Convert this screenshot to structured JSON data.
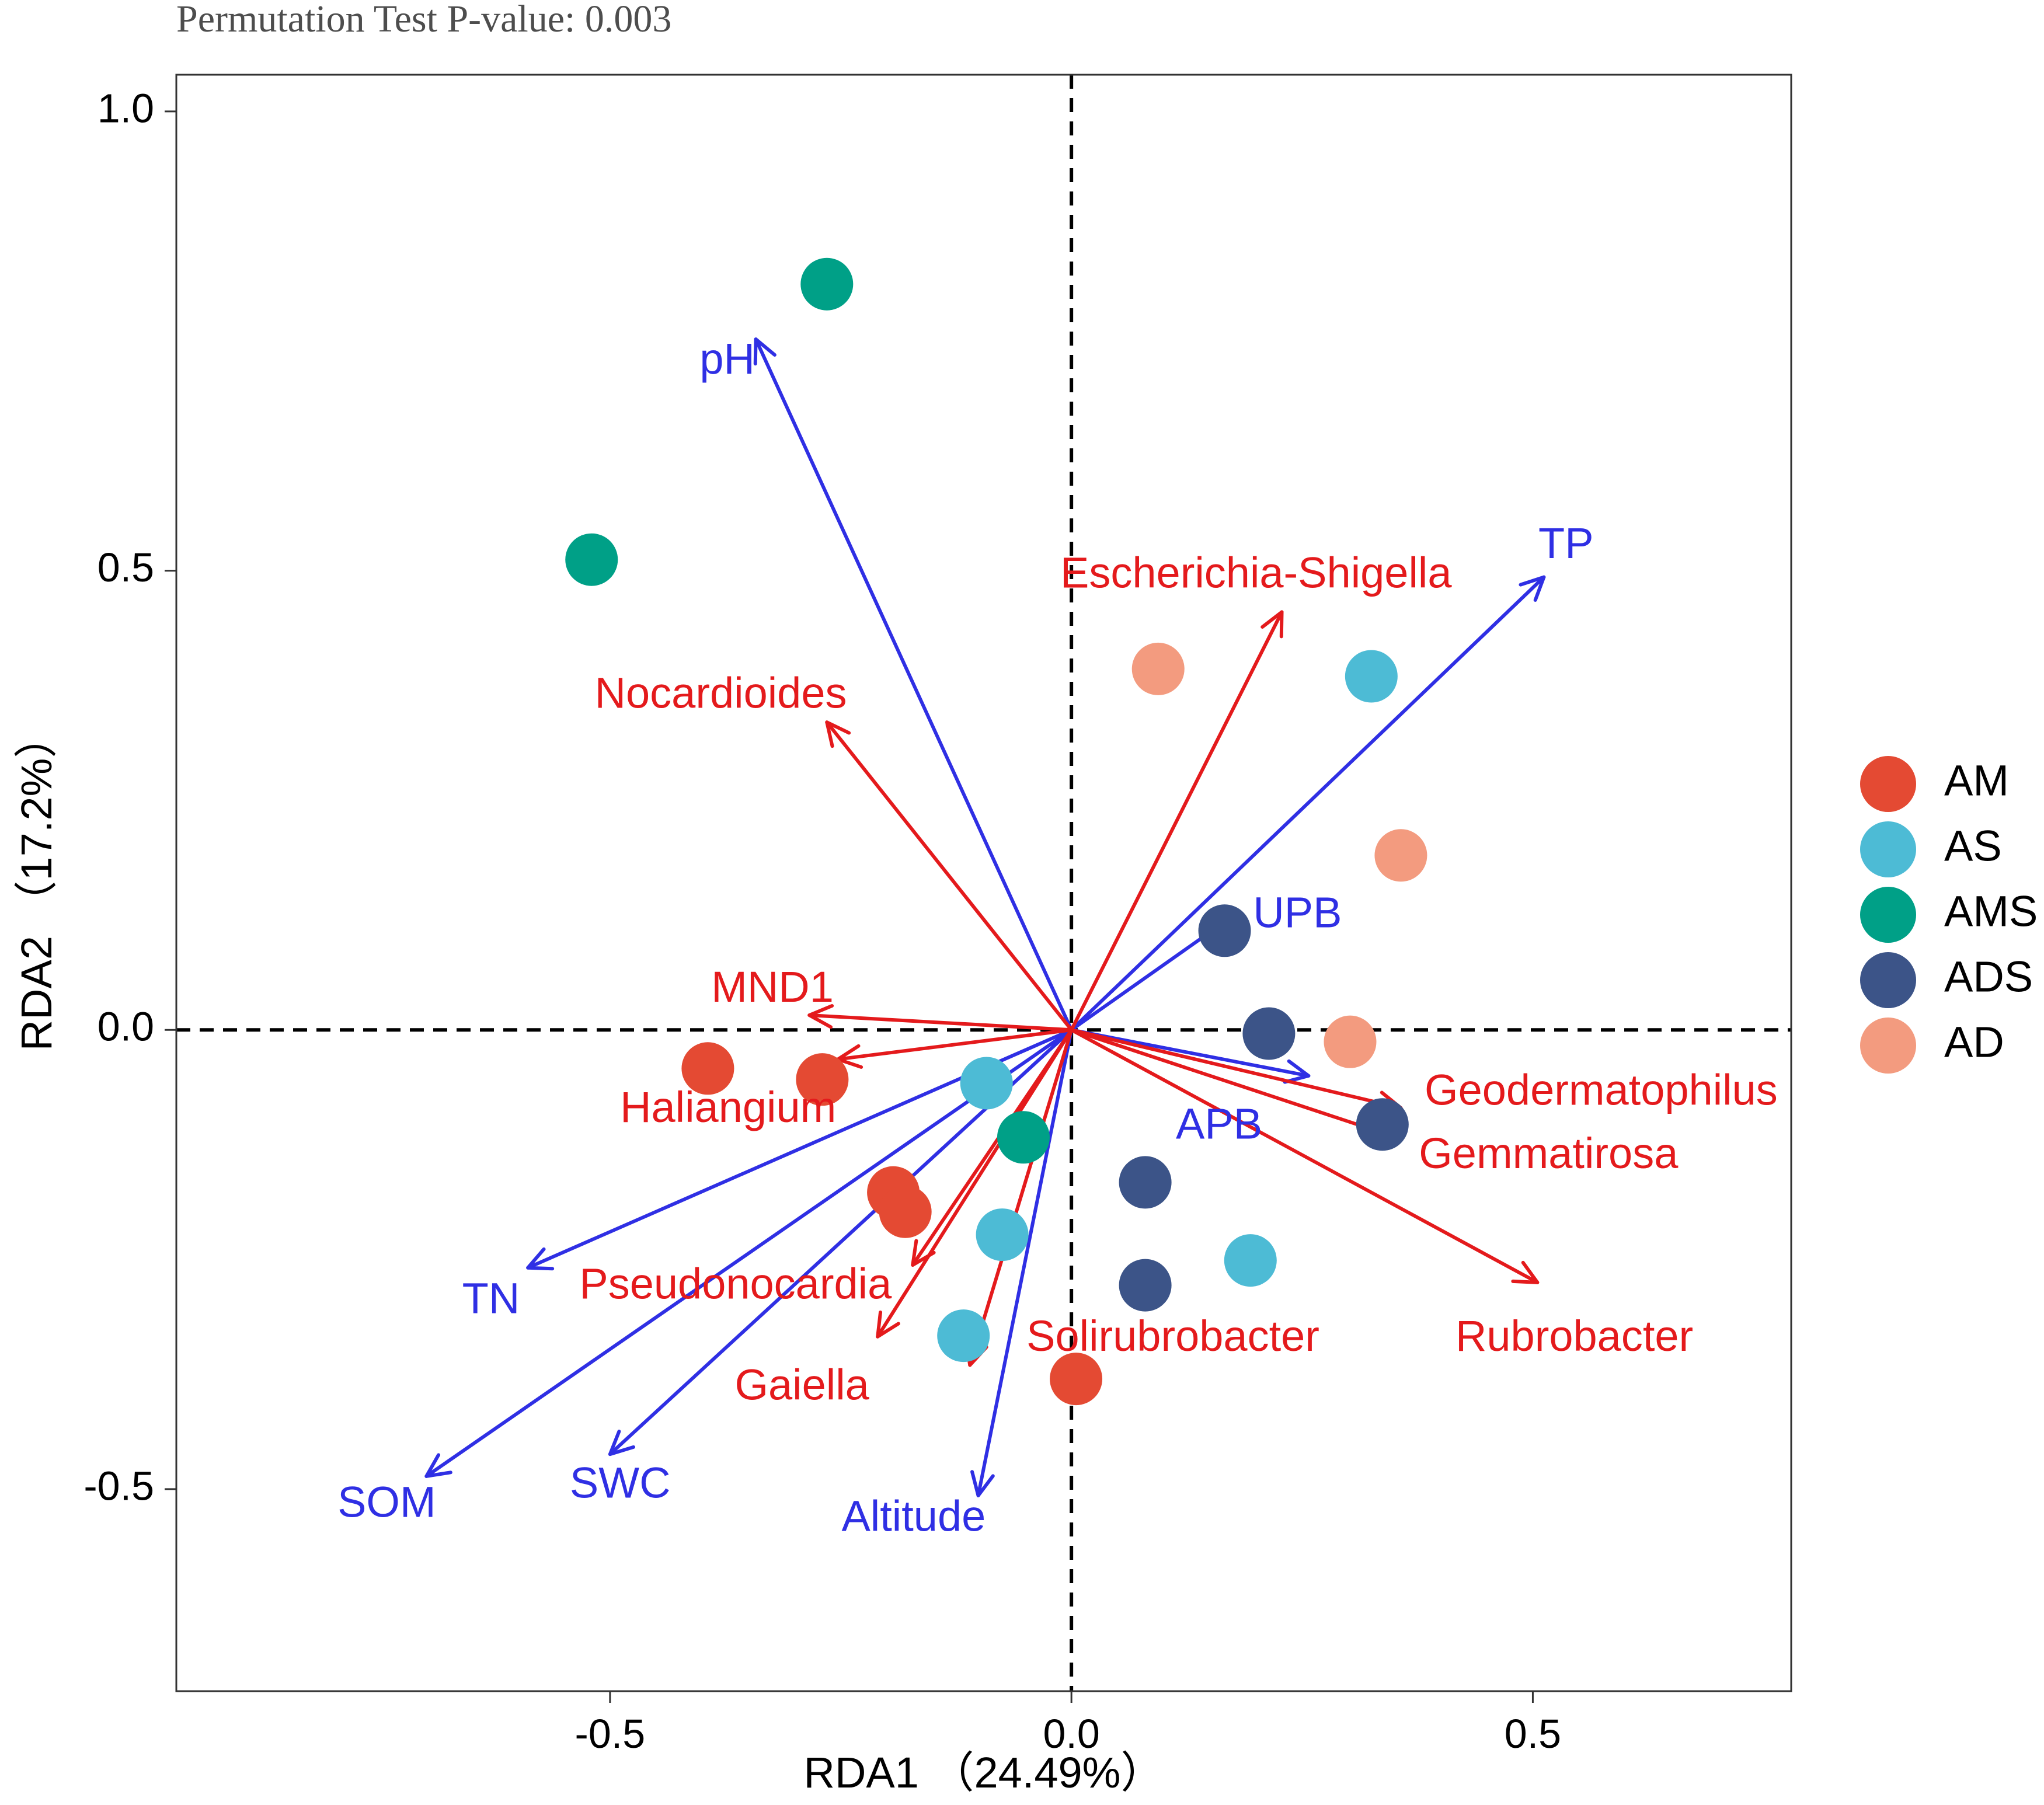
{
  "chart_data": {
    "type": "scatter",
    "subtitle": "Permutation Test P-value: 0.003",
    "xlabel": "RDA1 （24.49%）",
    "ylabel": "RDA2 （17.2%）",
    "xlim": [
      -0.97,
      0.78
    ],
    "ylim": [
      -0.72,
      1.04
    ],
    "xticks": [
      -0.5,
      0.0,
      0.5
    ],
    "xtick_labels": [
      "-0.5",
      "0.0",
      "0.5"
    ],
    "yticks": [
      -0.5,
      0.0,
      0.5,
      1.0
    ],
    "ytick_labels": [
      "-0.5",
      "0.0",
      "0.5",
      "1.0"
    ],
    "grid": false,
    "reference_lines": {
      "x": 0,
      "y": 0,
      "style": "dashed"
    },
    "legend": {
      "position": "right",
      "entries": [
        {
          "label": "AM",
          "color": "#E44A33"
        },
        {
          "label": "AS",
          "color": "#4DBBD5"
        },
        {
          "label": "AMS",
          "color": "#00A087"
        },
        {
          "label": "ADS",
          "color": "#3C5488"
        },
        {
          "label": "AD",
          "color": "#F39B7F"
        }
      ]
    },
    "points": [
      {
        "group": "AMS",
        "x": -0.265,
        "y": 0.812
      },
      {
        "group": "AMS",
        "x": -0.52,
        "y": 0.512
      },
      {
        "group": "AMS",
        "x": -0.052,
        "y": -0.117
      },
      {
        "group": "AD",
        "x": 0.094,
        "y": 0.393
      },
      {
        "group": "AD",
        "x": 0.357,
        "y": 0.19
      },
      {
        "group": "AD",
        "x": 0.302,
        "y": -0.013
      },
      {
        "group": "AS",
        "x": 0.325,
        "y": 0.385
      },
      {
        "group": "AS",
        "x": -0.092,
        "y": -0.058
      },
      {
        "group": "AS",
        "x": -0.075,
        "y": -0.223
      },
      {
        "group": "AS",
        "x": -0.117,
        "y": -0.333
      },
      {
        "group": "AS",
        "x": 0.194,
        "y": -0.251
      },
      {
        "group": "ADS",
        "x": 0.166,
        "y": 0.108
      },
      {
        "group": "ADS",
        "x": 0.214,
        "y": -0.004
      },
      {
        "group": "ADS",
        "x": 0.337,
        "y": -0.103
      },
      {
        "group": "ADS",
        "x": 0.08,
        "y": -0.166
      },
      {
        "group": "ADS",
        "x": 0.08,
        "y": -0.278
      },
      {
        "group": "AM",
        "x": -0.394,
        "y": -0.042
      },
      {
        "group": "AM",
        "x": -0.27,
        "y": -0.054
      },
      {
        "group": "AM",
        "x": -0.193,
        "y": -0.177
      },
      {
        "group": "AM",
        "x": -0.18,
        "y": -0.198
      },
      {
        "group": "AM",
        "x": 0.005,
        "y": -0.38
      }
    ],
    "arrows": [
      {
        "label": "pH",
        "kind": "environmental",
        "color": "#2F2FE4",
        "x": -0.342,
        "y": 0.752,
        "label_x": -0.343,
        "label_y": 0.727,
        "anchor": "end"
      },
      {
        "label": "TP",
        "kind": "environmental",
        "color": "#2F2FE4",
        "x": 0.512,
        "y": 0.493,
        "label_x": 0.536,
        "label_y": 0.526,
        "anchor": "middle"
      },
      {
        "label": "UPB",
        "kind": "environmental",
        "color": "#2F2FE4",
        "x": 0.175,
        "y": 0.124,
        "label_x": 0.245,
        "label_y": 0.124,
        "anchor": "middle"
      },
      {
        "label": "APB",
        "kind": "environmental",
        "color": "#2F2FE4",
        "x": 0.257,
        "y": -0.05,
        "label_x": 0.16,
        "label_y": -0.106,
        "anchor": "middle"
      },
      {
        "label": "TN",
        "kind": "environmental",
        "color": "#2F2FE4",
        "x": -0.589,
        "y": -0.259,
        "label_x": -0.629,
        "label_y": -0.296,
        "anchor": "middle"
      },
      {
        "label": "SOM",
        "kind": "environmental",
        "color": "#2F2FE4",
        "x": -0.699,
        "y": -0.486,
        "label_x": -0.742,
        "label_y": -0.518,
        "anchor": "middle"
      },
      {
        "label": "SWC",
        "kind": "environmental",
        "color": "#2F2FE4",
        "x": -0.5,
        "y": -0.462,
        "label_x": -0.489,
        "label_y": -0.497,
        "anchor": "middle"
      },
      {
        "label": "Altitude",
        "kind": "environmental",
        "color": "#2F2FE4",
        "x": -0.101,
        "y": -0.507,
        "label_x": -0.171,
        "label_y": -0.533,
        "anchor": "middle"
      },
      {
        "label": "Escherichia-Shigella",
        "kind": "taxon",
        "color": "#E41A1C",
        "x": 0.228,
        "y": 0.455,
        "label_x": 0.2,
        "label_y": 0.494,
        "anchor": "middle"
      },
      {
        "label": "Nocardioides",
        "kind": "taxon",
        "color": "#E41A1C",
        "x": -0.265,
        "y": 0.335,
        "label_x": -0.38,
        "label_y": 0.363,
        "anchor": "middle"
      },
      {
        "label": "MND1",
        "kind": "taxon",
        "color": "#E41A1C",
        "x": -0.284,
        "y": 0.016,
        "label_x": -0.324,
        "label_y": 0.043,
        "anchor": "middle"
      },
      {
        "label": "Haliangium",
        "kind": "taxon",
        "color": "#E41A1C",
        "x": -0.253,
        "y": -0.032,
        "label_x": -0.372,
        "label_y": -0.088,
        "anchor": "middle"
      },
      {
        "label": "Geodermatophilus",
        "kind": "taxon",
        "color": "#E41A1C",
        "x": 0.357,
        "y": -0.085,
        "label_x": 0.574,
        "label_y": -0.069,
        "anchor": "middle"
      },
      {
        "label": "Gemmatirosa",
        "kind": "taxon",
        "color": "#E41A1C",
        "x": 0.352,
        "y": -0.117,
        "label_x": 0.517,
        "label_y": -0.138,
        "anchor": "middle"
      },
      {
        "label": "Rubrobacter",
        "kind": "taxon",
        "color": "#E41A1C",
        "x": 0.505,
        "y": -0.275,
        "label_x": 0.545,
        "label_y": -0.337,
        "anchor": "middle"
      },
      {
        "label": "Pseudonocardia",
        "kind": "taxon",
        "color": "#E41A1C",
        "x": -0.172,
        "y": -0.256,
        "label_x": -0.364,
        "label_y": -0.28,
        "anchor": "middle"
      },
      {
        "label": "Gaiella",
        "kind": "taxon",
        "color": "#E41A1C",
        "x": -0.21,
        "y": -0.334,
        "label_x": -0.292,
        "label_y": -0.39,
        "anchor": "middle"
      },
      {
        "label": "Solirubrobacter",
        "kind": "taxon",
        "color": "#E41A1C",
        "x": -0.11,
        "y": -0.365,
        "label_x": 0.11,
        "label_y": -0.337,
        "anchor": "middle"
      }
    ]
  }
}
